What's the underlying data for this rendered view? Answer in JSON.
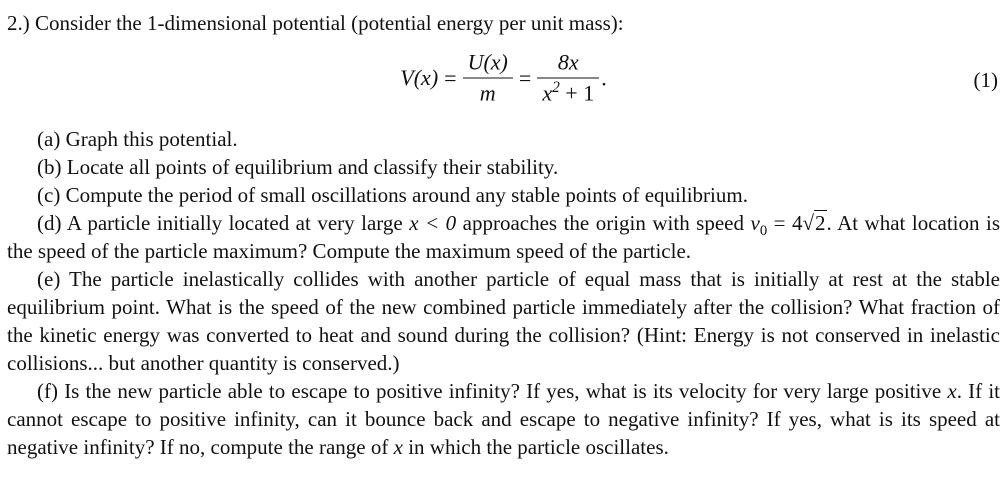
{
  "page": {
    "background_color": "#ffffff",
    "text_color": "#111111"
  },
  "problem": {
    "intro": "2.) Consider the 1-dimensional potential (potential energy per unit mass):",
    "equation": {
      "lhs_var": "V(x)",
      "equals1": "=",
      "frac1_num": "U(x)",
      "frac1_den": "m",
      "equals2": "=",
      "frac2_num": "8x",
      "frac2_den_base": "x",
      "frac2_den_sup": "2",
      "frac2_den_rest": " + 1",
      "trailing_period": ".",
      "number": "(1)"
    },
    "items": {
      "a": {
        "label": "(a)",
        "text": "Graph this potential."
      },
      "b": {
        "label": "(b)",
        "text": "Locate all points of equilibrium and classify their stability."
      },
      "c": {
        "label": "(c)",
        "text": "Compute the period of small oscillations around any stable points of equilibrium."
      },
      "d": {
        "label": "(d)",
        "pre": "A particle initially located at very large ",
        "math1": "x < 0",
        "mid": " approaches the origin with speed ",
        "v_var": "v",
        "v_sub": "0",
        "eq_part": " = 4",
        "sqrt_sign": "√",
        "sqrt_arg": "2",
        "post": ". At what location is the speed of the particle maximum? Compute the maximum speed of the particle."
      },
      "e": {
        "label": "(e)",
        "text": "The particle inelastically collides with another particle of equal mass that is initially at rest at the stable equilibrium point. What is the speed of the new combined particle immediately after the collision? What fraction of the kinetic energy was converted to heat and sound during the collision? (Hint: Energy is not conserved in inelastic collisions... but another quantity is conserved.)"
      },
      "f": {
        "label": "(f)",
        "pre": "Is the new particle able to escape to positive infinity? If yes, what is its velocity for very large positive ",
        "math1": "x",
        "mid": ". If it cannot escape to positive infinity, can it bounce back and escape to negative infinity? If yes, what is its speed at negative infinity? If no, compute the range of ",
        "math2": "x",
        "post": " in which the particle oscillates."
      }
    }
  }
}
